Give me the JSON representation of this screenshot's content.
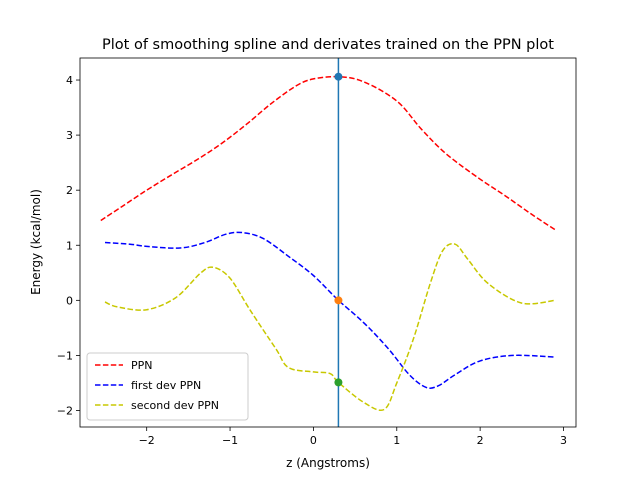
{
  "chart_data": {
    "type": "line",
    "title": "Plot of smoothing spline and derivates trained on the PPN plot",
    "xlabel": "z (Angstroms)",
    "ylabel": "Energy (kcal/mol)",
    "xlim": [
      -2.8,
      3.15
    ],
    "ylim": [
      -2.3,
      4.4
    ],
    "xticks": [
      -2,
      -1,
      0,
      1,
      2,
      3
    ],
    "xtick_labels": [
      "−2",
      "−1",
      "0",
      "1",
      "2",
      "3"
    ],
    "yticks": [
      -2,
      -1,
      0,
      1,
      2,
      3,
      4
    ],
    "ytick_labels": [
      "−2",
      "−1",
      "0",
      "1",
      "2",
      "3",
      "4"
    ],
    "grid": false,
    "legend_position": "lower-left",
    "vertical_line": {
      "x": 0.3,
      "color": "#1f77b4"
    },
    "markers": [
      {
        "x": 0.3,
        "y": 4.06,
        "color": "#1f77b4"
      },
      {
        "x": 0.3,
        "y": 0.0,
        "color": "#ff7f0e"
      },
      {
        "x": 0.3,
        "y": -1.49,
        "color": "#2ca02c"
      }
    ],
    "series": [
      {
        "name": "PPN",
        "color": "#ff0000",
        "points": [
          [
            -2.55,
            1.45
          ],
          [
            -2.3,
            1.7
          ],
          [
            -2.0,
            2.0
          ],
          [
            -1.7,
            2.28
          ],
          [
            -1.4,
            2.55
          ],
          [
            -1.1,
            2.85
          ],
          [
            -0.8,
            3.2
          ],
          [
            -0.5,
            3.58
          ],
          [
            -0.2,
            3.9
          ],
          [
            0.0,
            4.02
          ],
          [
            0.3,
            4.06
          ],
          [
            0.6,
            3.97
          ],
          [
            1.0,
            3.62
          ],
          [
            1.3,
            3.1
          ],
          [
            1.6,
            2.65
          ],
          [
            2.0,
            2.2
          ],
          [
            2.3,
            1.9
          ],
          [
            2.6,
            1.58
          ],
          [
            2.9,
            1.28
          ]
        ]
      },
      {
        "name": "first dev PPN",
        "color": "#0000ff",
        "points": [
          [
            -2.5,
            1.05
          ],
          [
            -2.2,
            1.02
          ],
          [
            -2.0,
            0.98
          ],
          [
            -1.6,
            0.95
          ],
          [
            -1.3,
            1.05
          ],
          [
            -1.05,
            1.2
          ],
          [
            -0.85,
            1.23
          ],
          [
            -0.6,
            1.12
          ],
          [
            -0.3,
            0.8
          ],
          [
            0.0,
            0.45
          ],
          [
            0.3,
            0.0
          ],
          [
            0.6,
            -0.4
          ],
          [
            0.9,
            -0.88
          ],
          [
            1.15,
            -1.35
          ],
          [
            1.35,
            -1.58
          ],
          [
            1.5,
            -1.55
          ],
          [
            1.7,
            -1.35
          ],
          [
            2.0,
            -1.1
          ],
          [
            2.4,
            -1.0
          ],
          [
            2.9,
            -1.03
          ]
        ]
      },
      {
        "name": "second dev PPN",
        "color": "#c8c800",
        "points": [
          [
            -2.5,
            -0.03
          ],
          [
            -2.35,
            -0.12
          ],
          [
            -2.0,
            -0.17
          ],
          [
            -1.65,
            0.05
          ],
          [
            -1.35,
            0.5
          ],
          [
            -1.2,
            0.6
          ],
          [
            -1.0,
            0.4
          ],
          [
            -0.75,
            -0.2
          ],
          [
            -0.45,
            -0.88
          ],
          [
            -0.3,
            -1.22
          ],
          [
            0.0,
            -1.3
          ],
          [
            0.2,
            -1.33
          ],
          [
            0.3,
            -1.49
          ],
          [
            0.6,
            -1.85
          ],
          [
            0.85,
            -1.98
          ],
          [
            1.0,
            -1.5
          ],
          [
            1.2,
            -0.7
          ],
          [
            1.4,
            0.3
          ],
          [
            1.55,
            0.9
          ],
          [
            1.7,
            1.02
          ],
          [
            1.85,
            0.75
          ],
          [
            2.1,
            0.3
          ],
          [
            2.5,
            -0.05
          ],
          [
            2.9,
            -0.0
          ]
        ]
      }
    ]
  }
}
